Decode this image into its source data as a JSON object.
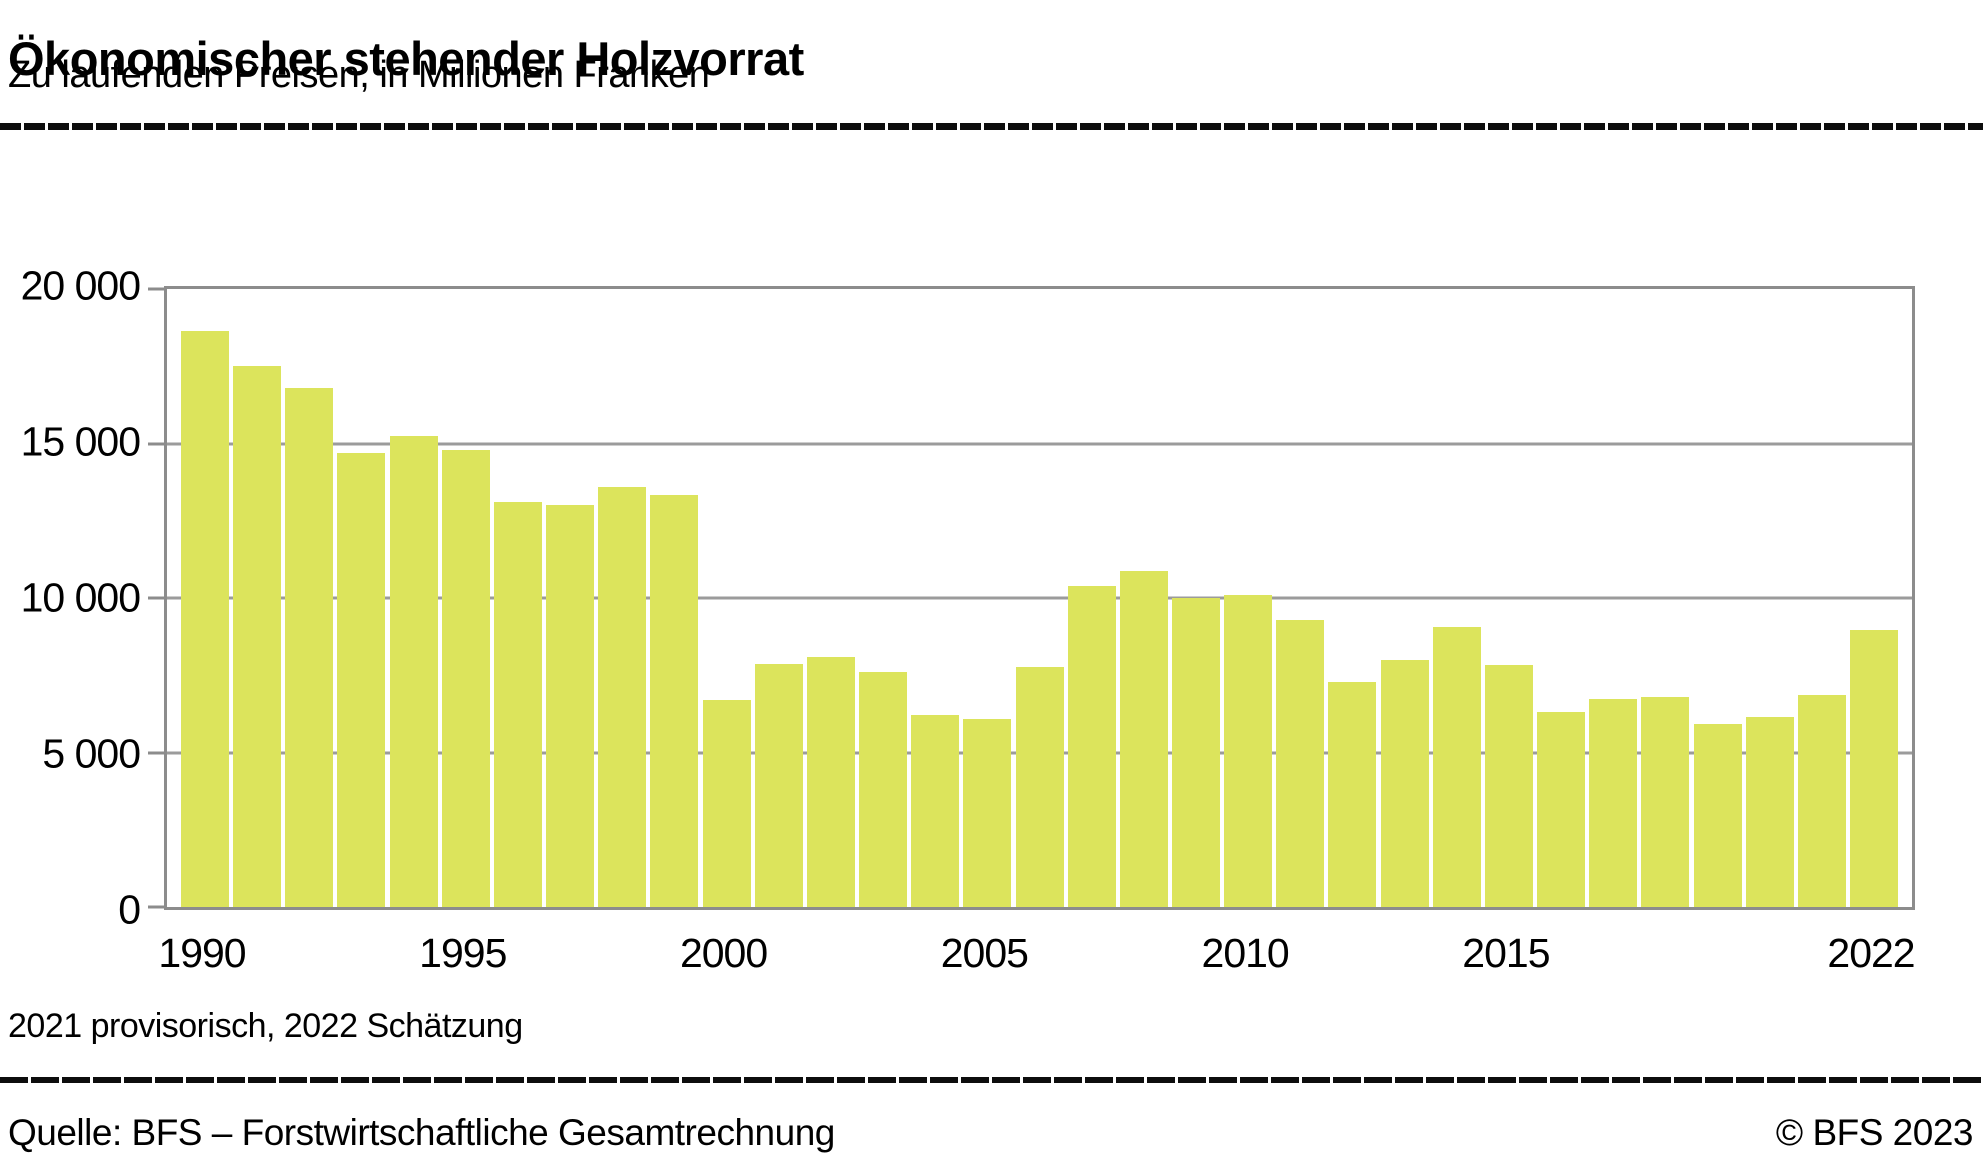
{
  "header": {
    "title": "Ökonomischer stehender Holzvorrat",
    "subtitle": "Zu laufenden Preisen, in Millionen Franken"
  },
  "footnote": "2021 provisorisch, 2022 Schätzung",
  "source": "Quelle: BFS – Forstwirtschaftliche Gesamtrechnung",
  "copyright": "© BFS 2023",
  "chart_data": {
    "type": "bar",
    "title": "Ökonomischer stehender Holzvorrat",
    "subtitle": "Zu laufenden Preisen, in Millionen Franken",
    "xlabel": "",
    "ylabel": "Millionen Franken",
    "ylim": [
      0,
      20000
    ],
    "grid": true,
    "categories": [
      1990,
      1991,
      1992,
      1993,
      1994,
      1995,
      1996,
      1997,
      1998,
      1999,
      2000,
      2001,
      2002,
      2003,
      2004,
      2005,
      2006,
      2007,
      2008,
      2009,
      2010,
      2011,
      2012,
      2013,
      2014,
      2015,
      2016,
      2017,
      2018,
      2019,
      2020,
      2021,
      2022
    ],
    "values": [
      18650,
      17500,
      16800,
      14700,
      15250,
      14800,
      13100,
      13000,
      13600,
      13350,
      6700,
      7850,
      8080,
      7600,
      6200,
      6100,
      7770,
      10380,
      10870,
      10000,
      10100,
      9280,
      7280,
      7980,
      9070,
      7840,
      6310,
      6740,
      6810,
      5910,
      6140,
      6860,
      8980
    ],
    "y_ticks": [
      "20 000",
      "15 000",
      "10 000",
      "5 000",
      "0"
    ],
    "x_tick_labels": [
      "1990",
      "1995",
      "2000",
      "2005",
      "2010",
      "2015",
      "2022"
    ],
    "x_tick_positions": [
      0,
      5,
      10,
      15,
      20,
      25,
      32
    ],
    "bar_color": "#dce45c",
    "grid_color": "#9b9b9b",
    "axis_color": "#8c8c8c"
  }
}
